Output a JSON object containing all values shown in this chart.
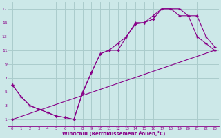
{
  "xlabel": "Windchill (Refroidissement éolien,°C)",
  "xlim": [
    -0.5,
    23.5
  ],
  "ylim": [
    0,
    18
  ],
  "xticks": [
    0,
    1,
    2,
    3,
    4,
    5,
    6,
    7,
    8,
    9,
    10,
    11,
    12,
    13,
    14,
    15,
    16,
    17,
    18,
    19,
    20,
    21,
    22,
    23
  ],
  "yticks": [
    1,
    3,
    5,
    7,
    9,
    11,
    13,
    15,
    17
  ],
  "bg_color": "#cce8e8",
  "grid_color": "#aacccc",
  "line_color": "#880088",
  "line1_x": [
    0,
    1,
    2,
    3,
    4,
    5,
    6,
    7,
    8,
    9,
    10,
    11,
    12,
    13,
    14,
    15,
    16,
    17,
    18,
    19,
    20,
    21,
    22,
    23
  ],
  "line1_y": [
    6,
    4.3,
    3,
    2.5,
    2.0,
    1.5,
    1.3,
    1.0,
    5.0,
    7.8,
    10.5,
    11.0,
    11.0,
    13.0,
    14.8,
    15.0,
    15.5,
    17.0,
    17.0,
    17.0,
    16.0,
    13.0,
    12.0,
    11.0
  ],
  "line2_x": [
    0,
    1,
    2,
    3,
    4,
    5,
    6,
    7,
    8,
    9,
    10,
    11,
    12,
    13,
    14,
    15,
    16,
    17,
    18,
    19,
    20,
    21,
    22,
    23
  ],
  "line2_y": [
    6,
    4.3,
    3,
    2.5,
    2.0,
    1.5,
    1.3,
    1.0,
    4.8,
    7.8,
    10.5,
    11.0,
    12.0,
    13.0,
    15.0,
    15.0,
    16.0,
    17.0,
    17.0,
    16.0,
    16.0,
    16.0,
    13.0,
    11.5
  ],
  "line3_x": [
    0,
    23
  ],
  "line3_y": [
    1.0,
    11.0
  ]
}
